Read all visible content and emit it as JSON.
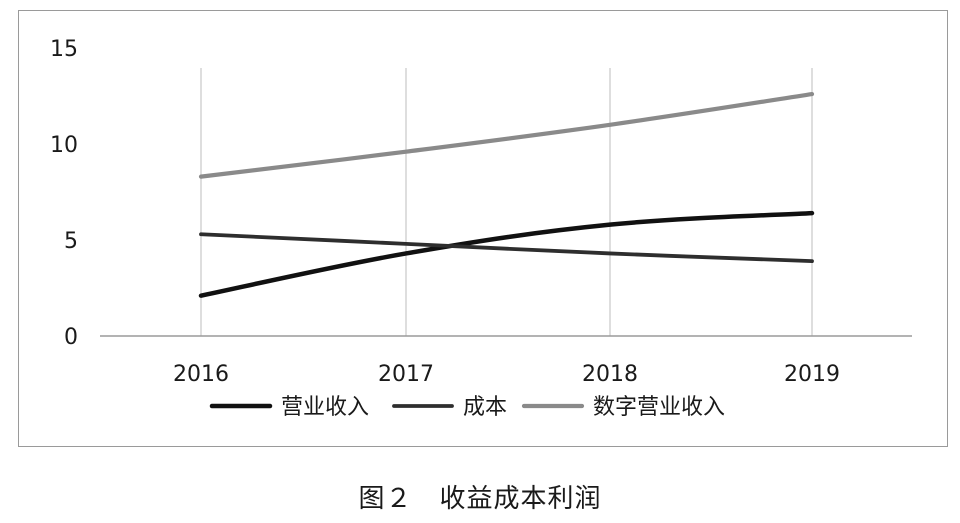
{
  "caption": "图２　收益成本利润",
  "chart_data": {
    "type": "line",
    "title": "",
    "xlabel": "",
    "ylabel": "",
    "categories": [
      "2016",
      "2017",
      "2018",
      "2019"
    ],
    "ylim": [
      0,
      15
    ],
    "yticks": [
      0,
      5,
      10,
      15
    ],
    "grid": "vertical lines at each category",
    "legend_position": "bottom",
    "series": [
      {
        "name": "营业收入",
        "values": [
          2.1,
          4.3,
          5.8,
          6.4
        ],
        "color": "#111111"
      },
      {
        "name": "成本",
        "values": [
          5.3,
          4.8,
          4.3,
          3.9
        ],
        "color": "#2e2e2e"
      },
      {
        "name": "数字营业收入",
        "values": [
          8.3,
          9.6,
          11.0,
          12.6
        ],
        "color": "#8a8a8a"
      }
    ]
  }
}
